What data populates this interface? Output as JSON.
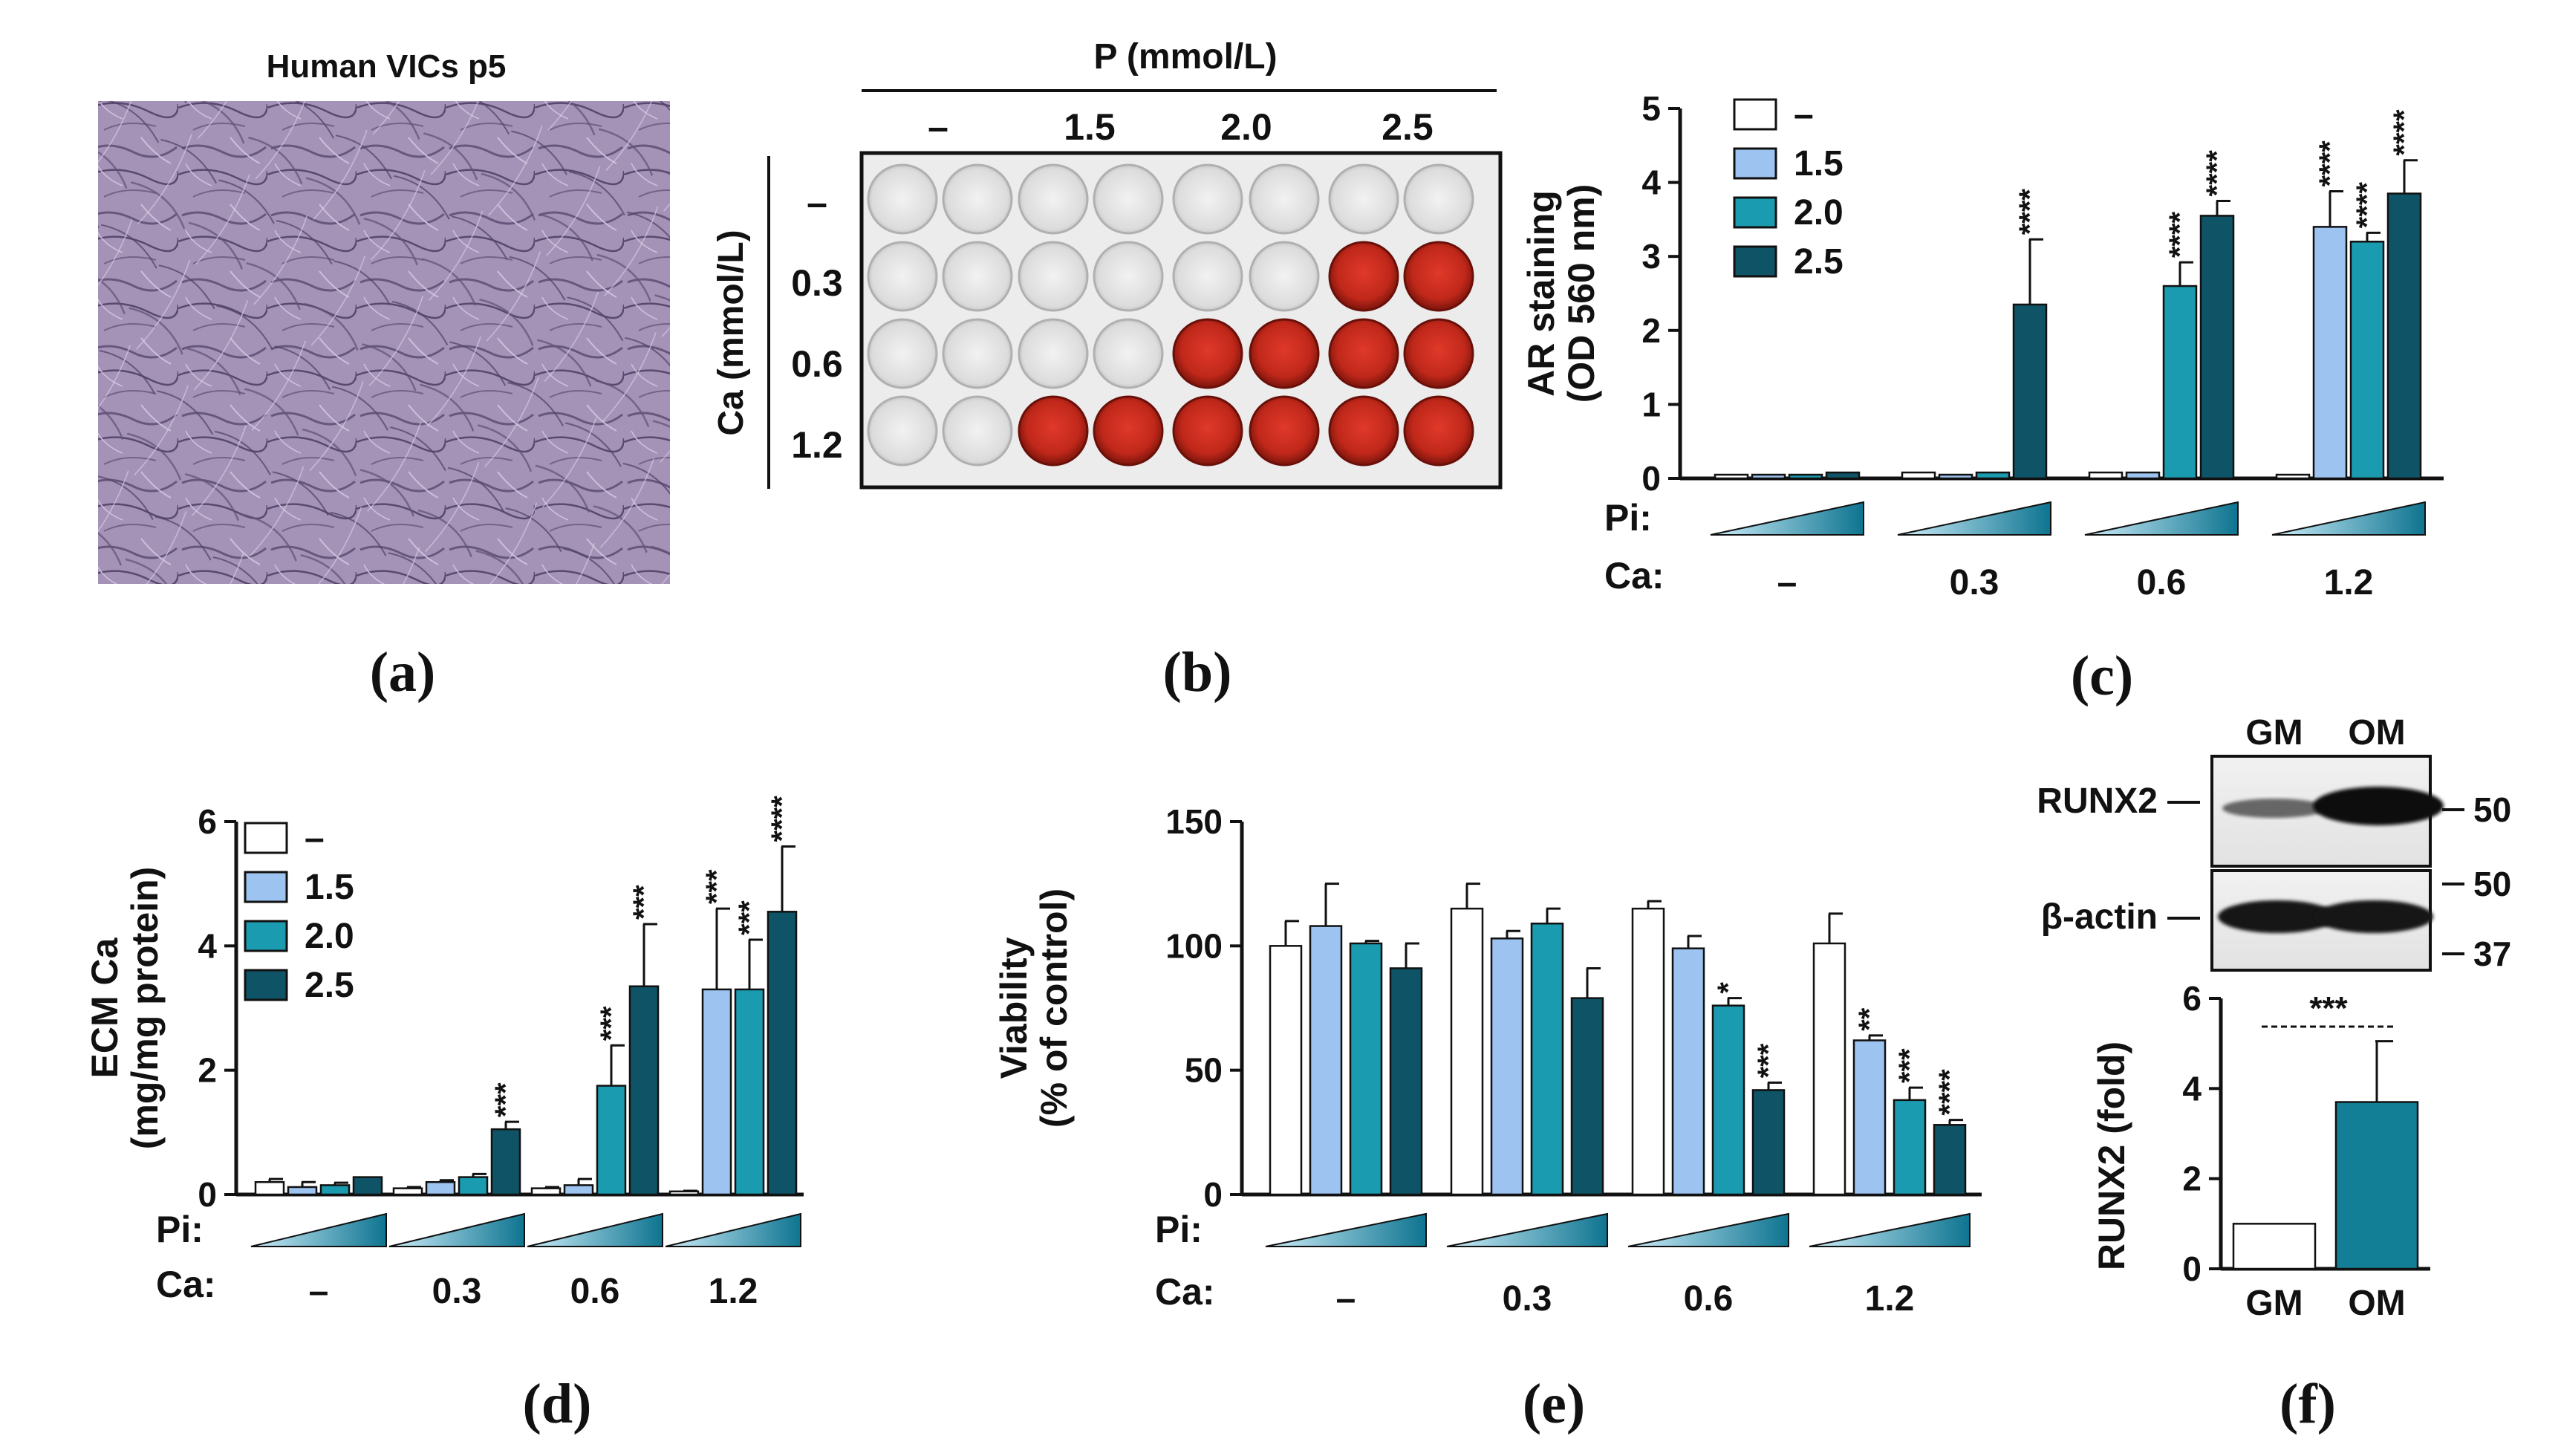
{
  "figure": {
    "panel_letters": [
      "(a)",
      "(b)",
      "(c)",
      "(d)",
      "(e)",
      "(f)"
    ]
  },
  "panel_a": {
    "title": "Human VICs p5",
    "image_description_name": "microscopy-image"
  },
  "panel_b": {
    "p_header": "P (mmol/L)",
    "p_levels": [
      "–",
      "1.5",
      "2.0",
      "2.5"
    ],
    "ca_header": "Ca (mmol/L)",
    "ca_levels": [
      "–",
      "0.3",
      "0.6",
      "1.2"
    ],
    "well_stain": [
      [
        0,
        0,
        0,
        0,
        0,
        0,
        0,
        0
      ],
      [
        0,
        0,
        0,
        0,
        0,
        0,
        1,
        1
      ],
      [
        0,
        0,
        0,
        0,
        1,
        1,
        1,
        1
      ],
      [
        0,
        0,
        1,
        1,
        1,
        1,
        1,
        1
      ]
    ],
    "colors": {
      "stained": "#c0281a",
      "stained_dark": "#8a1a10",
      "empty": "#e8e8e8"
    }
  },
  "colors": {
    "s0": "#ffffff",
    "s1": "#9dc3f0",
    "s2": "#1a9bb0",
    "s3": "#0e5466",
    "om": "#137f96",
    "ramp_start": "#cdeefa",
    "ramp_end": "#0e7490"
  },
  "shared_axis": {
    "pi_label": "Pi:",
    "ca_label": "Ca:",
    "ca_groups": [
      "–",
      "0.3",
      "0.6",
      "1.2"
    ]
  },
  "chart_data": [
    {
      "id": "c",
      "type": "bar",
      "ylabel_lines": [
        "AR staining",
        "(OD 560 nm)"
      ],
      "ylim": [
        0,
        5
      ],
      "yticks": [
        0,
        1,
        2,
        3,
        4,
        5
      ],
      "legend_labels": [
        "–",
        "1.5",
        "2.0",
        "2.5"
      ],
      "groups": [
        "–",
        "0.3",
        "0.6",
        "1.2"
      ],
      "values": [
        [
          0.05,
          0.05,
          0.05,
          0.08
        ],
        [
          0.08,
          0.05,
          0.08,
          2.35
        ],
        [
          0.08,
          0.08,
          2.6,
          3.55
        ],
        [
          0.05,
          3.4,
          3.2,
          3.85
        ]
      ],
      "errors": [
        [
          0,
          0,
          0,
          0
        ],
        [
          0,
          0,
          0,
          0.88
        ],
        [
          0,
          0,
          0.32,
          0.2
        ],
        [
          0,
          0.48,
          0.12,
          0.45
        ]
      ],
      "sig": [
        [
          "",
          "",
          "",
          ""
        ],
        [
          "",
          "",
          "",
          "****"
        ],
        [
          "",
          "",
          "****",
          "****"
        ],
        [
          "",
          "****",
          "****",
          "****"
        ]
      ]
    },
    {
      "id": "d",
      "type": "bar",
      "ylabel_lines": [
        "ECM Ca",
        "(mg/mg protein)"
      ],
      "ylim": [
        0,
        6
      ],
      "yticks": [
        0,
        2,
        4,
        6
      ],
      "legend_labels": [
        "–",
        "1.5",
        "2.0",
        "2.5"
      ],
      "groups": [
        "–",
        "0.3",
        "0.6",
        "1.2"
      ],
      "values": [
        [
          0.2,
          0.12,
          0.15,
          0.28
        ],
        [
          0.1,
          0.2,
          0.28,
          1.05
        ],
        [
          0.1,
          0.15,
          1.75,
          3.35
        ],
        [
          0.05,
          3.3,
          3.3,
          4.55
        ]
      ],
      "errors": [
        [
          0.05,
          0.08,
          0.04,
          0
        ],
        [
          0.02,
          0.03,
          0.05,
          0.12
        ],
        [
          0.02,
          0.1,
          0.65,
          1.0
        ],
        [
          0.01,
          1.3,
          0.8,
          1.05
        ]
      ],
      "sig": [
        [
          "",
          "",
          "",
          ""
        ],
        [
          "",
          "",
          "",
          "***"
        ],
        [
          "",
          "",
          "***",
          "***"
        ],
        [
          "",
          "***",
          "***",
          "****"
        ]
      ]
    },
    {
      "id": "e",
      "type": "bar",
      "ylabel_lines": [
        "Viability",
        "(% of control)"
      ],
      "ylim": [
        0,
        150
      ],
      "yticks": [
        0,
        50,
        100,
        150
      ],
      "groups": [
        "–",
        "0.3",
        "0.6",
        "1.2"
      ],
      "values": [
        [
          100,
          108,
          101,
          91
        ],
        [
          115,
          103,
          109,
          79
        ],
        [
          115,
          99,
          76,
          42
        ],
        [
          101,
          62,
          38,
          28
        ]
      ],
      "errors": [
        [
          10,
          17,
          1,
          10
        ],
        [
          10,
          3,
          6,
          12
        ],
        [
          3,
          5,
          3,
          3
        ],
        [
          12,
          2,
          5,
          2
        ]
      ],
      "sig": [
        [
          "",
          "",
          "",
          ""
        ],
        [
          "",
          "",
          "",
          ""
        ],
        [
          "",
          "",
          "*",
          "***"
        ],
        [
          "",
          "**",
          "***",
          "****"
        ]
      ]
    },
    {
      "id": "f",
      "type": "bar",
      "ylabel": "RUNX2 (fold)",
      "ylim": [
        0,
        6
      ],
      "yticks": [
        0,
        2,
        4,
        6
      ],
      "categories": [
        "GM",
        "OM"
      ],
      "values": [
        1.0,
        3.7
      ],
      "errors": [
        0,
        1.35
      ],
      "sig": "***"
    }
  ],
  "western_blot": {
    "lane_labels": [
      "GM",
      "OM"
    ],
    "proteins": [
      "RUNX2",
      "β-actin"
    ],
    "markers_runx2": [
      "50"
    ],
    "markers_actin": [
      "50",
      "37"
    ]
  }
}
